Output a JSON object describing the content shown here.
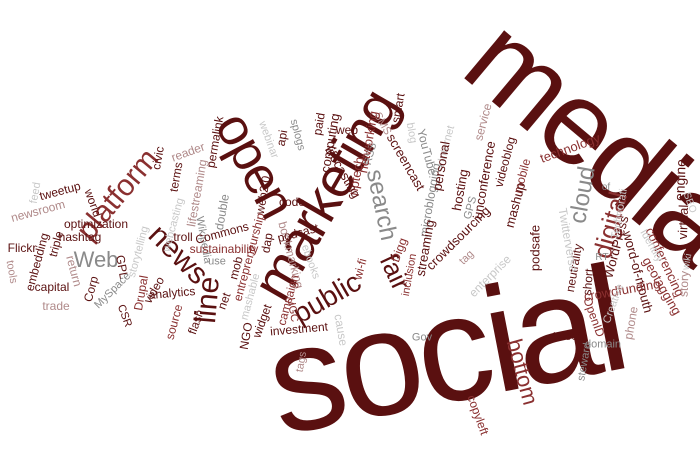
{
  "palette": {
    "dark": "#5a1010",
    "medium": "#8a3030",
    "light": "#b08a8a",
    "gray": "#8a8a8a",
    "pale": "#c8c8c8"
  },
  "words": [
    {
      "text": "social",
      "tone": "dark"
    },
    {
      "text": "media",
      "tone": "dark"
    },
    {
      "text": "marketing",
      "tone": "dark"
    },
    {
      "text": "open",
      "tone": "dark"
    },
    {
      "text": "platform",
      "tone": "medium"
    },
    {
      "text": "news",
      "tone": "dark"
    },
    {
      "text": "line",
      "tone": "dark"
    },
    {
      "text": "public",
      "tone": "dark"
    },
    {
      "text": "fair",
      "tone": "dark"
    },
    {
      "text": "search",
      "tone": "gray"
    },
    {
      "text": "cloud",
      "tone": "gray"
    },
    {
      "text": "digital",
      "tone": "medium"
    },
    {
      "text": "bottom",
      "tone": "medium"
    },
    {
      "text": "Web",
      "tone": "gray"
    },
    {
      "text": "engine",
      "tone": "dark"
    },
    {
      "text": "virtual",
      "tone": "dark"
    },
    {
      "text": "conferencing",
      "tone": "medium"
    },
    {
      "text": "story",
      "tone": "light"
    },
    {
      "text": "SEO",
      "tone": "pale"
    },
    {
      "text": "wiki",
      "tone": "pale"
    },
    {
      "text": "geotagging",
      "tone": "medium"
    },
    {
      "text": "word-of-mouth",
      "tone": "dark"
    },
    {
      "text": "crowdfunding",
      "tone": "medium"
    },
    {
      "text": "phone",
      "tone": "light"
    },
    {
      "text": "Creative",
      "tone": "pale"
    },
    {
      "text": "OpenID",
      "tone": "medium"
    },
    {
      "text": "domain",
      "tone": "gray"
    },
    {
      "text": "steward",
      "tone": "gray"
    },
    {
      "text": "tweet",
      "tone": "dark"
    },
    {
      "text": "copyleft",
      "tone": "medium"
    },
    {
      "text": "Gov",
      "tone": "gray"
    },
    {
      "text": "WordPress",
      "tone": "dark"
    },
    {
      "text": "RT",
      "tone": "gray"
    },
    {
      "text": "neutrality",
      "tone": "dark"
    },
    {
      "text": "short",
      "tone": "dark"
    },
    {
      "text": "Twitterverse",
      "tone": "pale"
    },
    {
      "text": "of",
      "tone": "gray"
    },
    {
      "text": "technology",
      "tone": "medium"
    },
    {
      "text": "service",
      "tone": "light"
    },
    {
      "text": "videoblog",
      "tone": "dark"
    },
    {
      "text": "mobile",
      "tone": "medium"
    },
    {
      "text": "mashup",
      "tone": "dark"
    },
    {
      "text": "podsafe",
      "tone": "dark"
    },
    {
      "text": "enterprise",
      "tone": "pale"
    },
    {
      "text": "unconference",
      "tone": "dark"
    },
    {
      "text": "Internet",
      "tone": "pale"
    },
    {
      "text": "tag",
      "tone": "light"
    },
    {
      "text": "hosting",
      "tone": "dark"
    },
    {
      "text": "GPS",
      "tone": "gray"
    },
    {
      "text": "crowdsourcing",
      "tone": "dark"
    },
    {
      "text": "microblogging",
      "tone": "gray"
    },
    {
      "text": "personal",
      "tone": "dark"
    },
    {
      "text": "YouTube",
      "tone": "gray"
    },
    {
      "text": "blog",
      "tone": "pale"
    },
    {
      "text": "screencast",
      "tone": "dark"
    },
    {
      "text": "smart",
      "tone": "dark"
    },
    {
      "text": "SMS",
      "tone": "light"
    },
    {
      "text": "RSS",
      "tone": "gray"
    },
    {
      "text": "networking",
      "tone": "medium"
    },
    {
      "text": "web",
      "tone": "dark"
    },
    {
      "text": "Digg",
      "tone": "medium"
    },
    {
      "text": "streaming",
      "tone": "dark"
    },
    {
      "text": "inclusion",
      "tone": "medium"
    },
    {
      "text": "wi-fi",
      "tone": "medium"
    },
    {
      "text": "UGC",
      "tone": "medium"
    },
    {
      "text": "cause",
      "tone": "pale"
    },
    {
      "text": "nptech",
      "tone": "medium"
    },
    {
      "text": "lifecasting",
      "tone": "dark"
    },
    {
      "text": "computing",
      "tone": "dark"
    },
    {
      "text": "paid",
      "tone": "dark"
    },
    {
      "text": "splogs",
      "tone": "gray"
    },
    {
      "text": "api",
      "tone": "dark"
    },
    {
      "text": "webinar",
      "tone": "pale"
    },
    {
      "text": "permalink",
      "tone": "dark"
    },
    {
      "text": "reader",
      "tone": "light"
    },
    {
      "text": "civic",
      "tone": "dark"
    },
    {
      "text": "terms",
      "tone": "dark"
    },
    {
      "text": "lifestreaming",
      "tone": "light"
    },
    {
      "text": "web2.0",
      "tone": "dark"
    },
    {
      "text": "feed",
      "tone": "pale"
    },
    {
      "text": "tweetup",
      "tone": "dark"
    },
    {
      "text": "newsroom",
      "tone": "light"
    },
    {
      "text": "world",
      "tone": "dark"
    },
    {
      "text": "optimization",
      "tone": "dark"
    },
    {
      "text": "Flickr",
      "tone": "dark"
    },
    {
      "text": "embedding",
      "tone": "dark"
    },
    {
      "text": "triple",
      "tone": "dark"
    },
    {
      "text": "hashtag",
      "tone": "dark"
    },
    {
      "text": "tools",
      "tone": "light"
    },
    {
      "text": "capital",
      "tone": "dark"
    },
    {
      "text": "return",
      "tone": "light"
    },
    {
      "text": "Corp",
      "tone": "dark"
    },
    {
      "text": "trade",
      "tone": "light"
    },
    {
      "text": "GPL",
      "tone": "dark"
    },
    {
      "text": "MySpace",
      "tone": "gray"
    },
    {
      "text": "storytelling",
      "tone": "pale"
    },
    {
      "text": "webcasting",
      "tone": "pale"
    },
    {
      "text": "Drupal",
      "tone": "medium"
    },
    {
      "text": "video",
      "tone": "dark"
    },
    {
      "text": "CSR",
      "tone": "dark"
    },
    {
      "text": "Wikipedia",
      "tone": "gray"
    },
    {
      "text": "troll",
      "tone": "dark"
    },
    {
      "text": "analytics",
      "tone": "dark"
    },
    {
      "text": "source",
      "tone": "medium"
    },
    {
      "text": "flash",
      "tone": "dark"
    },
    {
      "text": "Commons",
      "tone": "dark"
    },
    {
      "text": "double",
      "tone": "gray"
    },
    {
      "text": "sustainability",
      "tone": "medium"
    },
    {
      "text": "use",
      "tone": "gray"
    },
    {
      "text": "net",
      "tone": "dark"
    },
    {
      "text": "mob",
      "tone": "dark"
    },
    {
      "text": "NGO",
      "tone": "dark"
    },
    {
      "text": "dap",
      "tone": "dark"
    },
    {
      "text": "code",
      "tone": "dark"
    },
    {
      "text": "entrepreneurship",
      "tone": "medium"
    },
    {
      "text": "mashable",
      "tone": "pale"
    },
    {
      "text": "widget",
      "tone": "dark"
    },
    {
      "text": "investment",
      "tone": "dark"
    },
    {
      "text": "bookmarking",
      "tone": "light"
    },
    {
      "text": "podcast",
      "tone": "dark"
    },
    {
      "text": "ebooks",
      "tone": "pale"
    },
    {
      "text": "campaign",
      "tone": "medium"
    },
    {
      "text": "tags",
      "tone": "light"
    },
    {
      "text": "Technorati",
      "tone": "pale"
    },
    {
      "text": "Identity",
      "tone": "pale"
    }
  ]
}
